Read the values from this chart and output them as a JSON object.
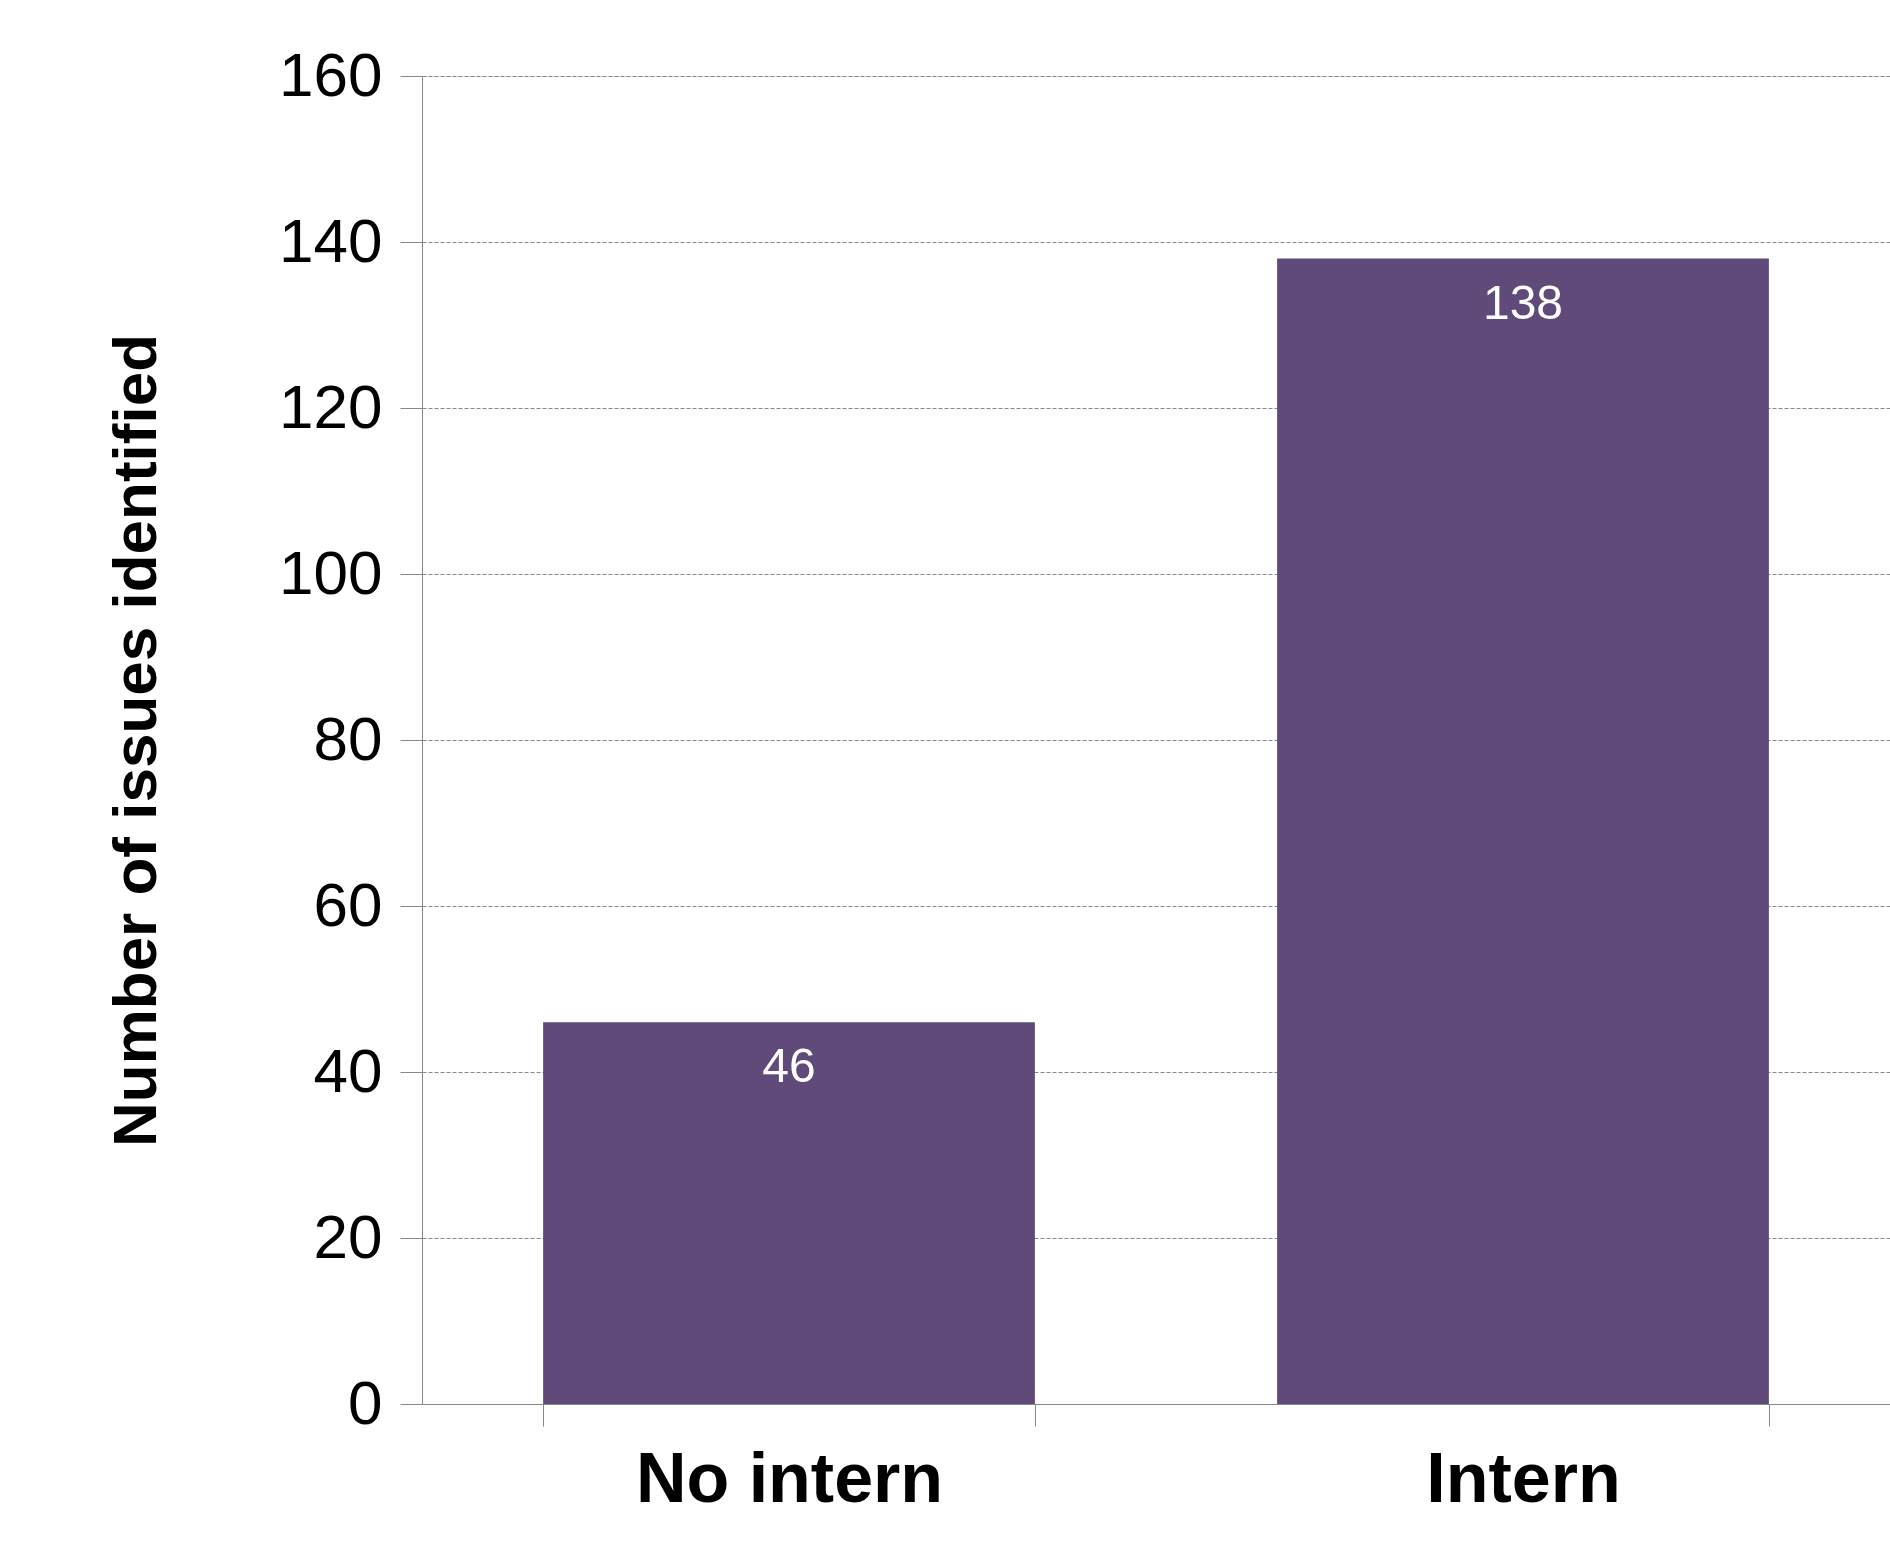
{
  "chart_data": {
    "type": "bar",
    "ylabel": "Number of issues identified",
    "categories": [
      "No intern",
      "Intern"
    ],
    "values": [
      46,
      138
    ],
    "color": "#5f4a7a",
    "ylim": [
      0,
      160
    ],
    "yticks": [
      0,
      20,
      40,
      60,
      80,
      100,
      120,
      140,
      160
    ],
    "grid": "y",
    "data_labels": true
  }
}
